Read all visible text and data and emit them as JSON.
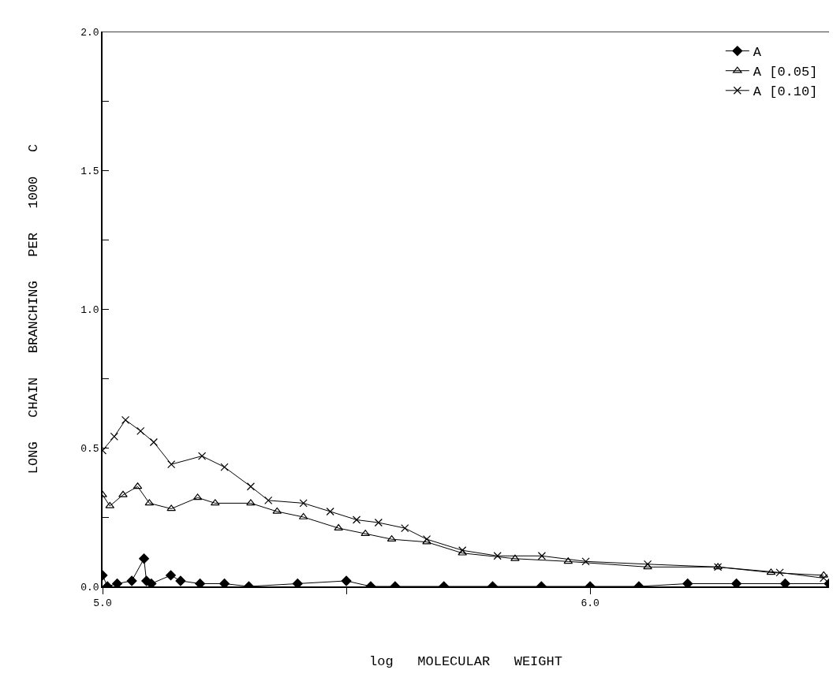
{
  "chart_data": {
    "type": "line",
    "xlabel": "log   MOLECULAR   WEIGHT",
    "ylabel": "LONG   CHAIN   BRANCHING   PER   1000   C",
    "xlim": [
      5.0,
      6.49
    ],
    "ylim": [
      0,
      2.0
    ],
    "xticks": [
      {
        "value": 5.0,
        "label": "5.0"
      },
      {
        "value": 5.5,
        "label": null
      },
      {
        "value": 6.0,
        "label": "6.0"
      }
    ],
    "yticks": [
      {
        "value": 0,
        "label": "0.0"
      },
      {
        "value": 0.25,
        "label": null
      },
      {
        "value": 0.5,
        "label": "0.5"
      },
      {
        "value": 0.75,
        "label": null
      },
      {
        "value": 1.0,
        "label": "1.0"
      },
      {
        "value": 1.25,
        "label": null
      },
      {
        "value": 1.5,
        "label": "1.5"
      },
      {
        "value": 1.75,
        "label": null
      },
      {
        "value": 2.0,
        "label": "2.0"
      }
    ],
    "legend": "top right",
    "series": [
      {
        "name": "A",
        "color": "#000000",
        "marker": "diamond",
        "x": [
          5.0,
          5.01,
          5.03,
          5.06,
          5.085,
          5.09,
          5.1,
          5.14,
          5.16,
          5.2,
          5.25,
          5.3,
          5.4,
          5.5,
          5.55,
          5.6,
          5.7,
          5.8,
          5.9,
          6.0,
          6.1,
          6.2,
          6.3,
          6.4,
          6.49
        ],
        "values": [
          0.04,
          0.0,
          0.01,
          0.02,
          0.1,
          0.02,
          0.01,
          0.04,
          0.02,
          0.01,
          0.01,
          0.0,
          0.01,
          0.02,
          0.0,
          0.0,
          0.0,
          0.0,
          0.0,
          0.0,
          0.0,
          0.01,
          0.01,
          0.01,
          0.01
        ]
      },
      {
        "name": "A [0.05]",
        "color": "#000000",
        "marker": "triangle",
        "x": [
          5.0,
          5.015,
          5.042,
          5.072,
          5.096,
          5.141,
          5.195,
          5.231,
          5.304,
          5.358,
          5.412,
          5.484,
          5.539,
          5.593,
          5.665,
          5.738,
          5.846,
          5.955,
          6.118,
          6.262,
          6.371,
          6.479
        ],
        "values": [
          0.33,
          0.29,
          0.33,
          0.36,
          0.3,
          0.28,
          0.32,
          0.3,
          0.3,
          0.27,
          0.25,
          0.21,
          0.19,
          0.17,
          0.16,
          0.12,
          0.1,
          0.09,
          0.07,
          0.07,
          0.05,
          0.04
        ]
      },
      {
        "name": "A [0.10]",
        "color": "#000000",
        "marker": "cross",
        "x": [
          5.0,
          5.024,
          5.047,
          5.078,
          5.105,
          5.141,
          5.204,
          5.25,
          5.304,
          5.34,
          5.412,
          5.467,
          5.521,
          5.566,
          5.62,
          5.665,
          5.738,
          5.81,
          5.901,
          5.991,
          6.118,
          6.262,
          6.389,
          6.479
        ],
        "values": [
          0.49,
          0.54,
          0.6,
          0.56,
          0.52,
          0.44,
          0.47,
          0.43,
          0.36,
          0.31,
          0.3,
          0.27,
          0.24,
          0.23,
          0.21,
          0.17,
          0.13,
          0.11,
          0.11,
          0.09,
          0.08,
          0.07,
          0.05,
          0.03
        ]
      }
    ]
  }
}
